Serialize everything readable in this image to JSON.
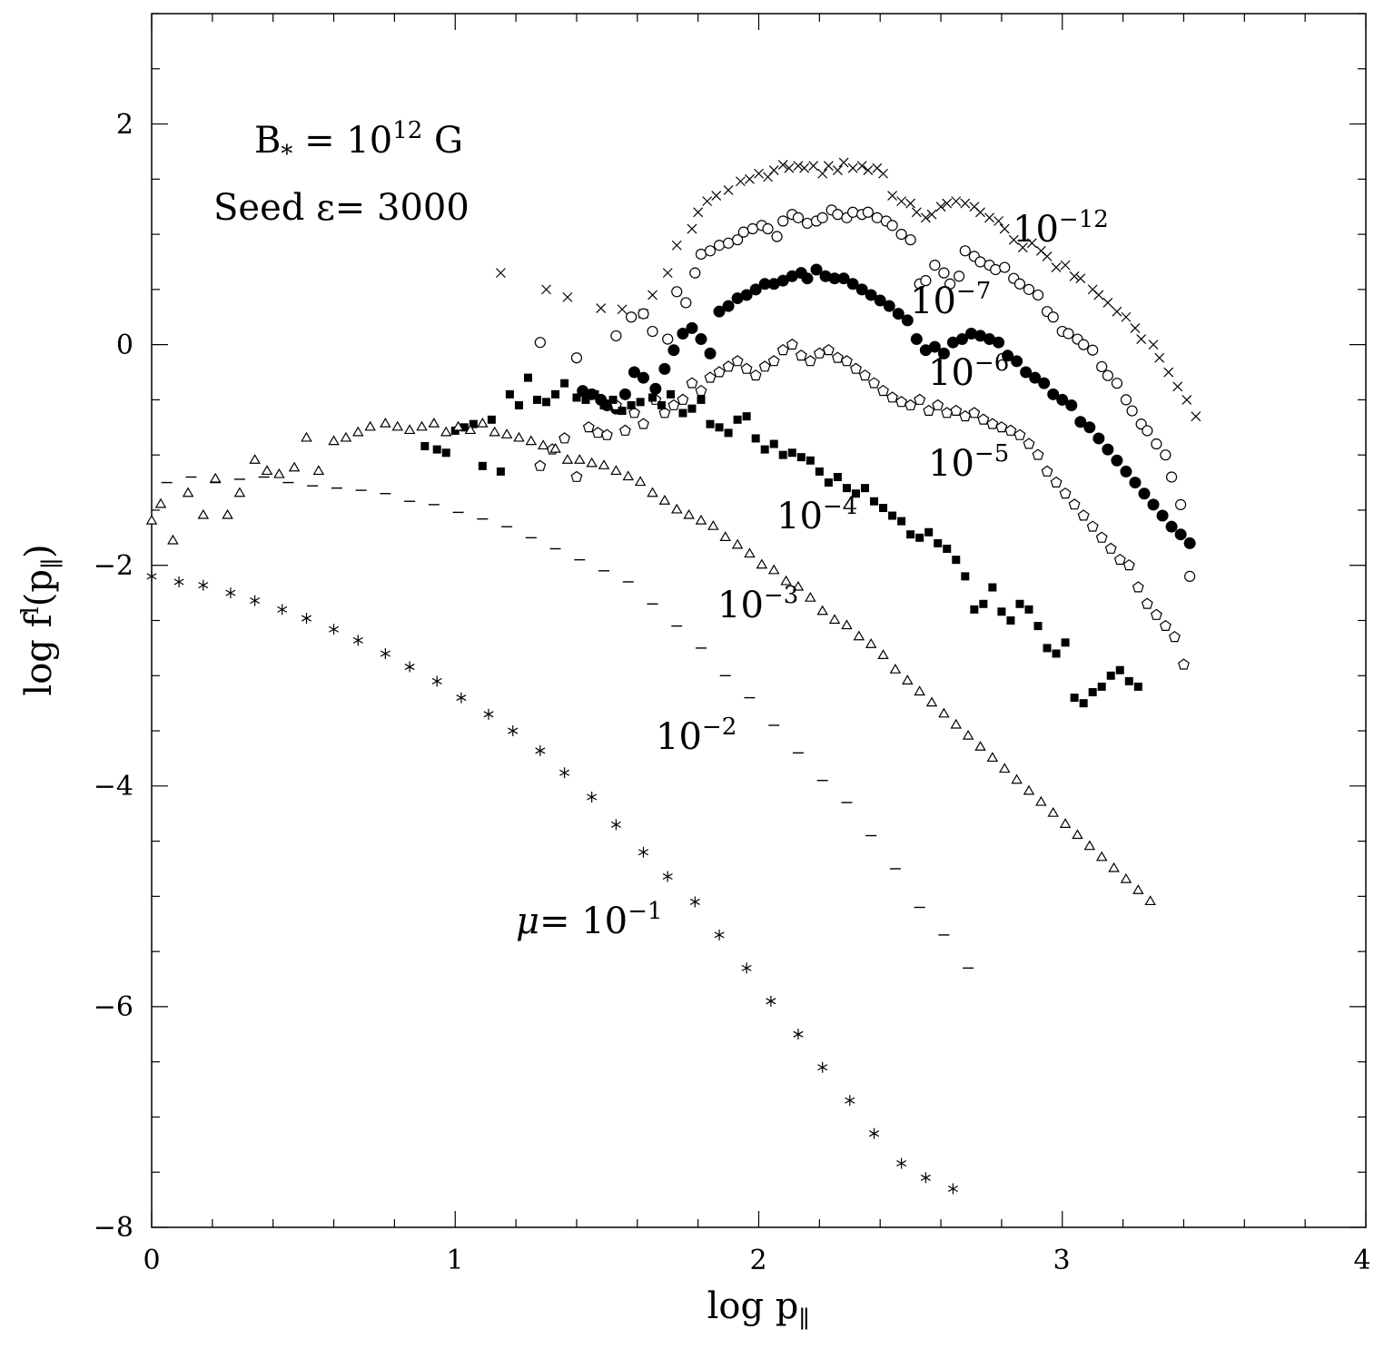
{
  "chart_data": {
    "type": "scatter",
    "xlabel": "log p",
    "xlabel_sub": "∥",
    "ylabel": "log f",
    "ylabel_sup": "l",
    "ylabel_arg": "(p",
    "ylabel_sub": "∥",
    "ylabel_close": ")",
    "xlim": [
      0,
      4
    ],
    "ylim": [
      -8,
      3
    ],
    "x_ticks": [
      0,
      1,
      2,
      3,
      4
    ],
    "x_tick_labels": [
      "0",
      "1",
      "2",
      "3",
      "4"
    ],
    "y_ticks": [
      -8,
      -6,
      -4,
      -2,
      0,
      2
    ],
    "y_tick_labels": [
      "−8",
      "−6",
      "−4",
      "−2",
      "0",
      "2"
    ],
    "annotations": {
      "field_pre": "B",
      "field_sub": "*",
      "field_eq": " = 10",
      "field_sup": "12",
      "field_unit": " G",
      "seed": "Seed ε= 3000"
    },
    "series": [
      {
        "name": "mu_1e-12",
        "marker": "cross",
        "label_base": "10",
        "label_exp": "−12",
        "x": [
          1.15,
          1.3,
          1.37,
          1.48,
          1.55,
          1.62,
          1.65,
          1.7,
          1.73,
          1.78,
          1.8,
          1.83,
          1.86,
          1.9,
          1.94,
          1.97,
          2.0,
          2.03,
          2.05,
          2.08,
          2.1,
          2.13,
          2.15,
          2.18,
          2.21,
          2.23,
          2.26,
          2.28,
          2.31,
          2.34,
          2.36,
          2.39,
          2.41,
          2.44,
          2.47,
          2.5,
          2.52,
          2.55,
          2.57,
          2.6,
          2.62,
          2.65,
          2.68,
          2.71,
          2.73,
          2.76,
          2.79,
          2.81,
          2.84,
          2.87,
          2.9,
          2.93,
          2.95,
          2.98,
          3.01,
          3.04,
          3.06,
          3.1,
          3.12,
          3.15,
          3.18,
          3.21,
          3.24,
          3.26,
          3.3,
          3.32,
          3.35,
          3.38,
          3.41,
          3.44
        ],
        "y": [
          0.65,
          0.5,
          0.43,
          0.33,
          0.32,
          0.28,
          0.45,
          0.65,
          0.9,
          1.05,
          1.2,
          1.3,
          1.35,
          1.4,
          1.48,
          1.5,
          1.55,
          1.52,
          1.58,
          1.63,
          1.6,
          1.62,
          1.6,
          1.62,
          1.55,
          1.62,
          1.58,
          1.65,
          1.6,
          1.62,
          1.58,
          1.6,
          1.55,
          1.35,
          1.3,
          1.28,
          1.2,
          1.15,
          1.18,
          1.25,
          1.28,
          1.3,
          1.28,
          1.25,
          1.2,
          1.15,
          1.12,
          1.05,
          0.95,
          0.88,
          0.92,
          0.85,
          0.8,
          0.7,
          0.72,
          0.62,
          0.6,
          0.5,
          0.45,
          0.38,
          0.3,
          0.25,
          0.15,
          0.05,
          0.0,
          -0.12,
          -0.25,
          -0.38,
          -0.5,
          -0.65
        ]
      },
      {
        "name": "mu_1e-7",
        "marker": "open-circle",
        "label_base": "10",
        "label_exp": "−7",
        "x": [
          1.28,
          1.4,
          1.53,
          1.58,
          1.62,
          1.65,
          1.7,
          1.73,
          1.76,
          1.79,
          1.81,
          1.84,
          1.87,
          1.9,
          1.93,
          1.95,
          1.98,
          2.01,
          2.03,
          2.06,
          2.08,
          2.11,
          2.13,
          2.16,
          2.19,
          2.21,
          2.24,
          2.26,
          2.29,
          2.31,
          2.34,
          2.36,
          2.39,
          2.42,
          2.44,
          2.47,
          2.5,
          2.53,
          2.55,
          2.58,
          2.61,
          2.63,
          2.66,
          2.68,
          2.71,
          2.73,
          2.76,
          2.78,
          2.81,
          2.84,
          2.86,
          2.89,
          2.92,
          2.95,
          2.97,
          3.0,
          3.02,
          3.05,
          3.07,
          3.1,
          3.13,
          3.15,
          3.18,
          3.21,
          3.23,
          3.26,
          3.28,
          3.31,
          3.34,
          3.36,
          3.39,
          3.42
        ],
        "y": [
          0.02,
          -0.12,
          0.08,
          0.25,
          0.28,
          0.12,
          0.05,
          0.48,
          0.38,
          0.65,
          0.82,
          0.85,
          0.9,
          0.92,
          0.95,
          1.02,
          1.05,
          1.08,
          1.05,
          0.98,
          1.12,
          1.18,
          1.15,
          1.1,
          1.12,
          1.15,
          1.22,
          1.18,
          1.15,
          1.2,
          1.18,
          1.2,
          1.15,
          1.12,
          1.08,
          1.0,
          0.95,
          0.55,
          0.58,
          0.72,
          0.65,
          0.55,
          0.62,
          0.85,
          0.8,
          0.75,
          0.72,
          0.68,
          0.7,
          0.6,
          0.55,
          0.5,
          0.45,
          0.3,
          0.25,
          0.12,
          0.1,
          0.05,
          0.0,
          -0.05,
          -0.2,
          -0.28,
          -0.35,
          -0.5,
          -0.6,
          -0.72,
          -0.78,
          -0.9,
          -1.0,
          -1.2,
          -1.45,
          -2.1
        ]
      },
      {
        "name": "mu_1e-6",
        "marker": "filled-circle",
        "label_base": "10",
        "label_exp": "−6",
        "x": [
          1.42,
          1.45,
          1.48,
          1.5,
          1.53,
          1.56,
          1.59,
          1.62,
          1.66,
          1.69,
          1.72,
          1.75,
          1.78,
          1.81,
          1.84,
          1.87,
          1.9,
          1.93,
          1.96,
          1.99,
          2.02,
          2.05,
          2.08,
          2.11,
          2.14,
          2.16,
          2.19,
          2.22,
          2.25,
          2.28,
          2.31,
          2.34,
          2.37,
          2.4,
          2.43,
          2.46,
          2.49,
          2.52,
          2.55,
          2.58,
          2.61,
          2.64,
          2.67,
          2.7,
          2.73,
          2.76,
          2.79,
          2.82,
          2.85,
          2.88,
          2.91,
          2.94,
          2.97,
          3.0,
          3.03,
          3.06,
          3.09,
          3.12,
          3.15,
          3.18,
          3.21,
          3.24,
          3.27,
          3.3,
          3.33,
          3.36,
          3.39,
          3.42
        ],
        "y": [
          -0.42,
          -0.45,
          -0.5,
          -0.55,
          -0.58,
          -0.45,
          -0.25,
          -0.3,
          -0.4,
          -0.22,
          -0.05,
          0.1,
          0.15,
          0.05,
          -0.08,
          0.3,
          0.35,
          0.42,
          0.45,
          0.5,
          0.55,
          0.55,
          0.58,
          0.62,
          0.65,
          0.6,
          0.68,
          0.62,
          0.6,
          0.6,
          0.55,
          0.5,
          0.45,
          0.4,
          0.35,
          0.28,
          0.22,
          0.05,
          -0.05,
          -0.02,
          -0.08,
          0.02,
          0.05,
          0.1,
          0.08,
          0.05,
          0.02,
          -0.1,
          -0.15,
          -0.25,
          -0.3,
          -0.35,
          -0.45,
          -0.5,
          -0.55,
          -0.7,
          -0.75,
          -0.85,
          -0.95,
          -1.05,
          -1.15,
          -1.25,
          -1.35,
          -1.45,
          -1.55,
          -1.65,
          -1.72,
          -1.8
        ]
      },
      {
        "name": "mu_1e-5",
        "marker": "open-pentagon",
        "label_base": "10",
        "label_exp": "−5",
        "x": [
          1.28,
          1.32,
          1.36,
          1.4,
          1.44,
          1.47,
          1.5,
          1.53,
          1.56,
          1.59,
          1.62,
          1.66,
          1.69,
          1.72,
          1.75,
          1.78,
          1.81,
          1.84,
          1.87,
          1.9,
          1.93,
          1.96,
          1.99,
          2.02,
          2.05,
          2.08,
          2.11,
          2.14,
          2.17,
          2.2,
          2.23,
          2.26,
          2.29,
          2.32,
          2.35,
          2.38,
          2.41,
          2.44,
          2.47,
          2.5,
          2.53,
          2.56,
          2.59,
          2.62,
          2.65,
          2.68,
          2.71,
          2.74,
          2.77,
          2.8,
          2.83,
          2.86,
          2.89,
          2.92,
          2.95,
          2.98,
          3.01,
          3.04,
          3.07,
          3.1,
          3.13,
          3.16,
          3.19,
          3.22,
          3.25,
          3.28,
          3.31,
          3.34,
          3.37,
          3.4
        ],
        "y": [
          -1.1,
          -0.95,
          -0.85,
          -1.2,
          -0.75,
          -0.8,
          -0.82,
          -0.55,
          -0.78,
          -0.62,
          -0.72,
          -0.5,
          -0.62,
          -0.55,
          -0.5,
          -0.35,
          -0.42,
          -0.3,
          -0.25,
          -0.2,
          -0.15,
          -0.22,
          -0.28,
          -0.2,
          -0.15,
          -0.05,
          0.0,
          -0.1,
          -0.15,
          -0.08,
          -0.05,
          -0.12,
          -0.15,
          -0.22,
          -0.28,
          -0.35,
          -0.42,
          -0.48,
          -0.52,
          -0.55,
          -0.5,
          -0.6,
          -0.55,
          -0.62,
          -0.6,
          -0.65,
          -0.62,
          -0.68,
          -0.72,
          -0.75,
          -0.78,
          -0.82,
          -0.9,
          -1.0,
          -1.15,
          -1.25,
          -1.35,
          -1.45,
          -1.55,
          -1.65,
          -1.75,
          -1.85,
          -1.95,
          -2.0,
          -2.2,
          -2.35,
          -2.45,
          -2.55,
          -2.65,
          -2.9
        ]
      },
      {
        "name": "mu_1e-4",
        "marker": "filled-square",
        "label_base": "10",
        "label_exp": "−4",
        "x": [
          0.9,
          0.94,
          0.97,
          1.0,
          1.03,
          1.06,
          1.09,
          1.12,
          1.15,
          1.18,
          1.21,
          1.24,
          1.27,
          1.3,
          1.33,
          1.36,
          1.4,
          1.43,
          1.46,
          1.49,
          1.52,
          1.55,
          1.58,
          1.61,
          1.65,
          1.68,
          1.71,
          1.75,
          1.78,
          1.81,
          1.84,
          1.87,
          1.9,
          1.93,
          1.96,
          1.99,
          2.02,
          2.05,
          2.08,
          2.11,
          2.14,
          2.17,
          2.2,
          2.23,
          2.26,
          2.29,
          2.32,
          2.35,
          2.38,
          2.41,
          2.44,
          2.47,
          2.5,
          2.53,
          2.56,
          2.59,
          2.62,
          2.65,
          2.68,
          2.71,
          2.74,
          2.77,
          2.8,
          2.83,
          2.86,
          2.89,
          2.92,
          2.95,
          2.98,
          3.01,
          3.04,
          3.07,
          3.1,
          3.13,
          3.16,
          3.19,
          3.22,
          3.25
        ],
        "y": [
          -0.92,
          -0.95,
          -0.98,
          -0.78,
          -0.75,
          -0.72,
          -1.1,
          -0.68,
          -1.15,
          -0.45,
          -0.55,
          -0.3,
          -0.5,
          -0.52,
          -0.45,
          -0.35,
          -0.48,
          -0.5,
          -0.45,
          -0.55,
          -0.5,
          -0.6,
          -0.55,
          -0.52,
          -0.48,
          -0.55,
          -0.45,
          -0.62,
          -0.58,
          -0.5,
          -0.72,
          -0.75,
          -0.8,
          -0.68,
          -0.65,
          -0.85,
          -0.95,
          -0.9,
          -1.0,
          -0.98,
          -1.02,
          -1.05,
          -1.15,
          -1.25,
          -1.2,
          -1.3,
          -1.35,
          -1.3,
          -1.42,
          -1.48,
          -1.55,
          -1.6,
          -1.72,
          -1.75,
          -1.7,
          -1.8,
          -1.85,
          -1.95,
          -2.1,
          -2.4,
          -2.35,
          -2.2,
          -2.42,
          -2.5,
          -2.35,
          -2.4,
          -2.55,
          -2.75,
          -2.8,
          -2.7,
          -3.2,
          -3.25,
          -3.15,
          -3.1,
          -3.0,
          -2.95,
          -3.05,
          -3.1
        ]
      },
      {
        "name": "mu_1e-3",
        "marker": "open-triangle",
        "label_base": "10",
        "label_exp": "−3",
        "x": [
          0.0,
          0.03,
          0.07,
          0.12,
          0.17,
          0.21,
          0.25,
          0.29,
          0.34,
          0.38,
          0.42,
          0.47,
          0.51,
          0.55,
          0.6,
          0.64,
          0.68,
          0.72,
          0.77,
          0.81,
          0.85,
          0.89,
          0.93,
          0.97,
          1.01,
          1.05,
          1.09,
          1.13,
          1.17,
          1.21,
          1.25,
          1.29,
          1.33,
          1.37,
          1.41,
          1.45,
          1.49,
          1.53,
          1.57,
          1.61,
          1.65,
          1.69,
          1.73,
          1.77,
          1.81,
          1.85,
          1.89,
          1.93,
          1.97,
          2.01,
          2.05,
          2.09,
          2.13,
          2.17,
          2.21,
          2.25,
          2.29,
          2.33,
          2.37,
          2.41,
          2.45,
          2.49,
          2.53,
          2.57,
          2.61,
          2.65,
          2.69,
          2.73,
          2.77,
          2.81,
          2.85,
          2.89,
          2.93,
          2.97,
          3.01,
          3.05,
          3.09,
          3.13,
          3.17,
          3.21,
          3.25,
          3.29
        ],
        "y": [
          -1.6,
          -1.45,
          -1.78,
          -1.35,
          -1.55,
          -1.22,
          -1.55,
          -1.35,
          -1.05,
          -1.15,
          -1.18,
          -1.12,
          -0.85,
          -1.15,
          -0.88,
          -0.85,
          -0.8,
          -0.75,
          -0.72,
          -0.75,
          -0.78,
          -0.75,
          -0.72,
          -0.8,
          -0.75,
          -0.78,
          -0.72,
          -0.8,
          -0.82,
          -0.85,
          -0.88,
          -0.92,
          -0.95,
          -1.05,
          -1.05,
          -1.08,
          -1.1,
          -1.15,
          -1.2,
          -1.25,
          -1.35,
          -1.42,
          -1.5,
          -1.55,
          -1.6,
          -1.65,
          -1.75,
          -1.82,
          -1.9,
          -2.0,
          -2.05,
          -2.15,
          -2.2,
          -2.3,
          -2.42,
          -2.5,
          -2.55,
          -2.65,
          -2.72,
          -2.82,
          -2.95,
          -3.05,
          -3.15,
          -3.25,
          -3.35,
          -3.45,
          -3.55,
          -3.65,
          -3.75,
          -3.85,
          -3.95,
          -4.05,
          -4.15,
          -4.25,
          -4.35,
          -4.45,
          -4.55,
          -4.65,
          -4.75,
          -4.85,
          -4.95,
          -5.05
        ]
      },
      {
        "name": "mu_1e-2",
        "marker": "dash",
        "label_base": "10",
        "label_exp": "−2",
        "x": [
          0.05,
          0.13,
          0.21,
          0.29,
          0.37,
          0.45,
          0.53,
          0.61,
          0.69,
          0.77,
          0.85,
          0.93,
          1.01,
          1.09,
          1.17,
          1.25,
          1.33,
          1.41,
          1.49,
          1.57,
          1.65,
          1.73,
          1.81,
          1.89,
          1.97,
          2.05,
          2.13,
          2.21,
          2.29,
          2.37,
          2.45,
          2.53,
          2.61,
          2.69
        ],
        "y": [
          -1.25,
          -1.2,
          -1.25,
          -1.22,
          -1.2,
          -1.25,
          -1.28,
          -1.3,
          -1.32,
          -1.35,
          -1.42,
          -1.45,
          -1.52,
          -1.58,
          -1.65,
          -1.75,
          -1.85,
          -1.95,
          -2.05,
          -2.15,
          -2.35,
          -2.55,
          -2.75,
          -3.0,
          -3.2,
          -3.45,
          -3.7,
          -3.95,
          -4.15,
          -4.45,
          -4.75,
          -5.1,
          -5.35,
          -5.65
        ]
      },
      {
        "name": "mu_1e-1",
        "marker": "asterisk",
        "label_prefix": "μ= ",
        "label_base": "10",
        "label_exp": "−1",
        "x": [
          0.0,
          0.09,
          0.17,
          0.26,
          0.34,
          0.43,
          0.51,
          0.6,
          0.68,
          0.77,
          0.85,
          0.94,
          1.02,
          1.11,
          1.19,
          1.28,
          1.36,
          1.45,
          1.53,
          1.62,
          1.7,
          1.79,
          1.87,
          1.96,
          2.04,
          2.13,
          2.21,
          2.3,
          2.38,
          2.47,
          2.55,
          2.64
        ],
        "y": [
          -2.1,
          -2.15,
          -2.18,
          -2.25,
          -2.32,
          -2.4,
          -2.48,
          -2.58,
          -2.68,
          -2.8,
          -2.92,
          -3.05,
          -3.2,
          -3.35,
          -3.5,
          -3.68,
          -3.88,
          -4.1,
          -4.35,
          -4.6,
          -4.82,
          -5.05,
          -5.35,
          -5.65,
          -5.95,
          -6.25,
          -6.55,
          -6.85,
          -7.15,
          -7.42,
          -7.55,
          -7.65
        ]
      }
    ]
  }
}
